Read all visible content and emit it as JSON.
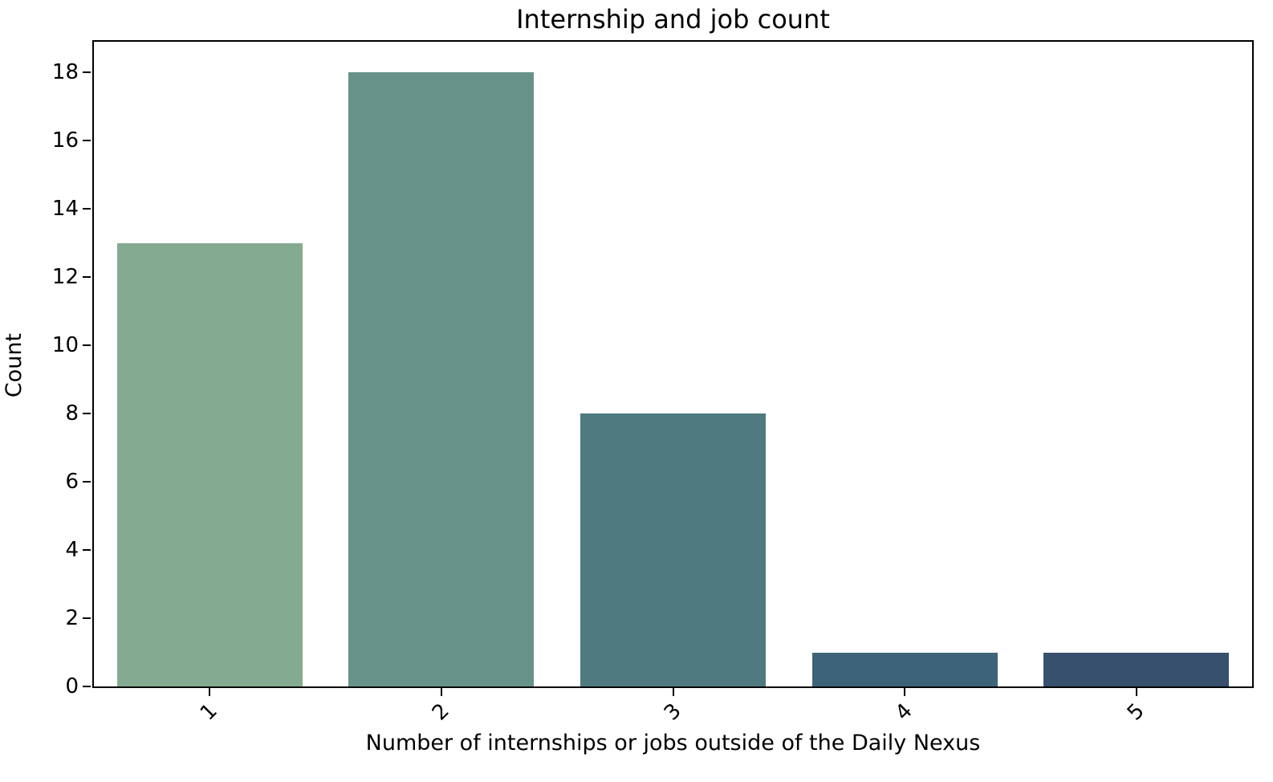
{
  "chart_data": {
    "type": "bar",
    "title": "Internship and job count",
    "xlabel": "Number of internships or jobs outside of the Daily Nexus",
    "ylabel": "Count",
    "categories": [
      "1",
      "2",
      "3",
      "4",
      "5"
    ],
    "values": [
      13,
      18,
      8,
      1,
      1
    ],
    "bar_colors": [
      "#84ab92",
      "#679289",
      "#4e7a80",
      "#3d6379",
      "#37506d"
    ],
    "yticks": [
      0,
      2,
      4,
      6,
      8,
      10,
      12,
      14,
      16,
      18
    ],
    "ylim": [
      0,
      18.9
    ],
    "bar_width_fraction": 0.8,
    "xtick_rotation_deg": 45,
    "grid": false,
    "legend": null,
    "spine_color": "#000000",
    "background_color": "#ffffff"
  }
}
